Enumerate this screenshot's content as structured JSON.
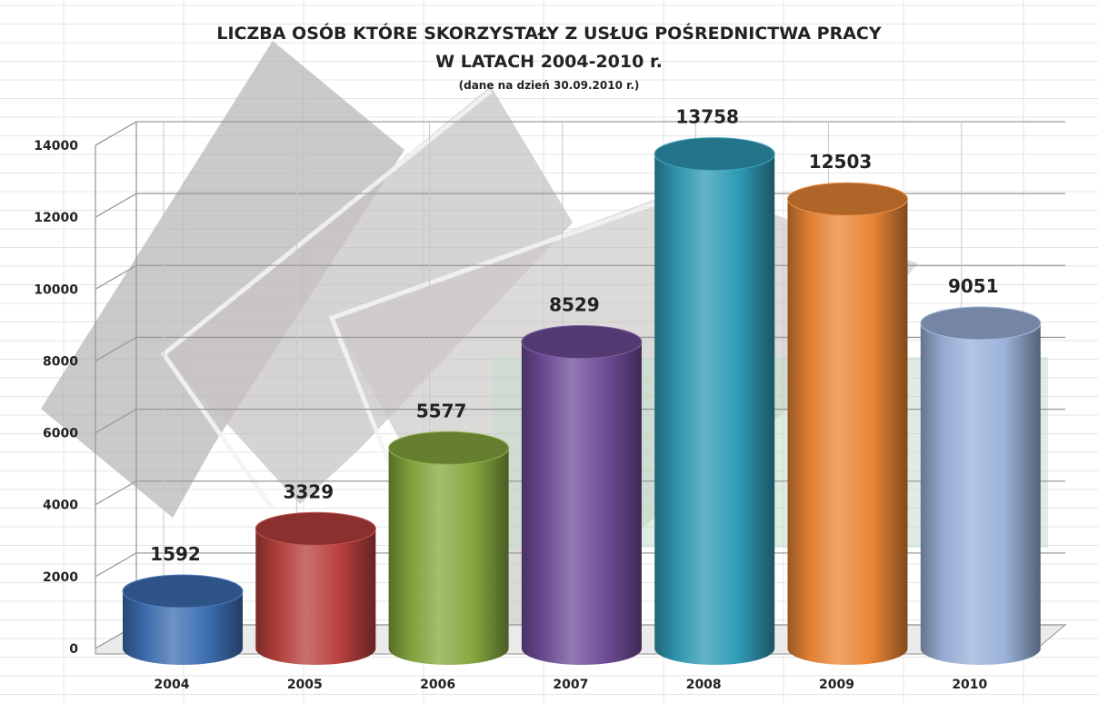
{
  "chart_data": {
    "type": "bar",
    "title": "LICZBA OSÓB KTÓRE SKORZYSTAŁY Z USŁUG POŚREDNICTWA PRACY",
    "subtitle": "W LATACH 2004-2010  r.",
    "note": "(dane na dzień 30.09.2010 r.)",
    "categories": [
      "2004",
      "2005",
      "2006",
      "2007",
      "2008",
      "2009",
      "2010"
    ],
    "values": [
      1592,
      3329,
      5577,
      8529,
      13758,
      12503,
      9051
    ],
    "colors": [
      "#3d6fb3",
      "#b8403d",
      "#86a83f",
      "#6f4d98",
      "#2f9bb5",
      "#ea8635",
      "#9bb2da"
    ],
    "ylim": [
      0,
      14000
    ],
    "yticks": [
      "0",
      "2000",
      "4000",
      "6000",
      "8000",
      "10000",
      "12000",
      "14000"
    ],
    "xlabel": "",
    "ylabel": "",
    "grid": true,
    "legend": "none",
    "style": "3d-cylinder"
  }
}
